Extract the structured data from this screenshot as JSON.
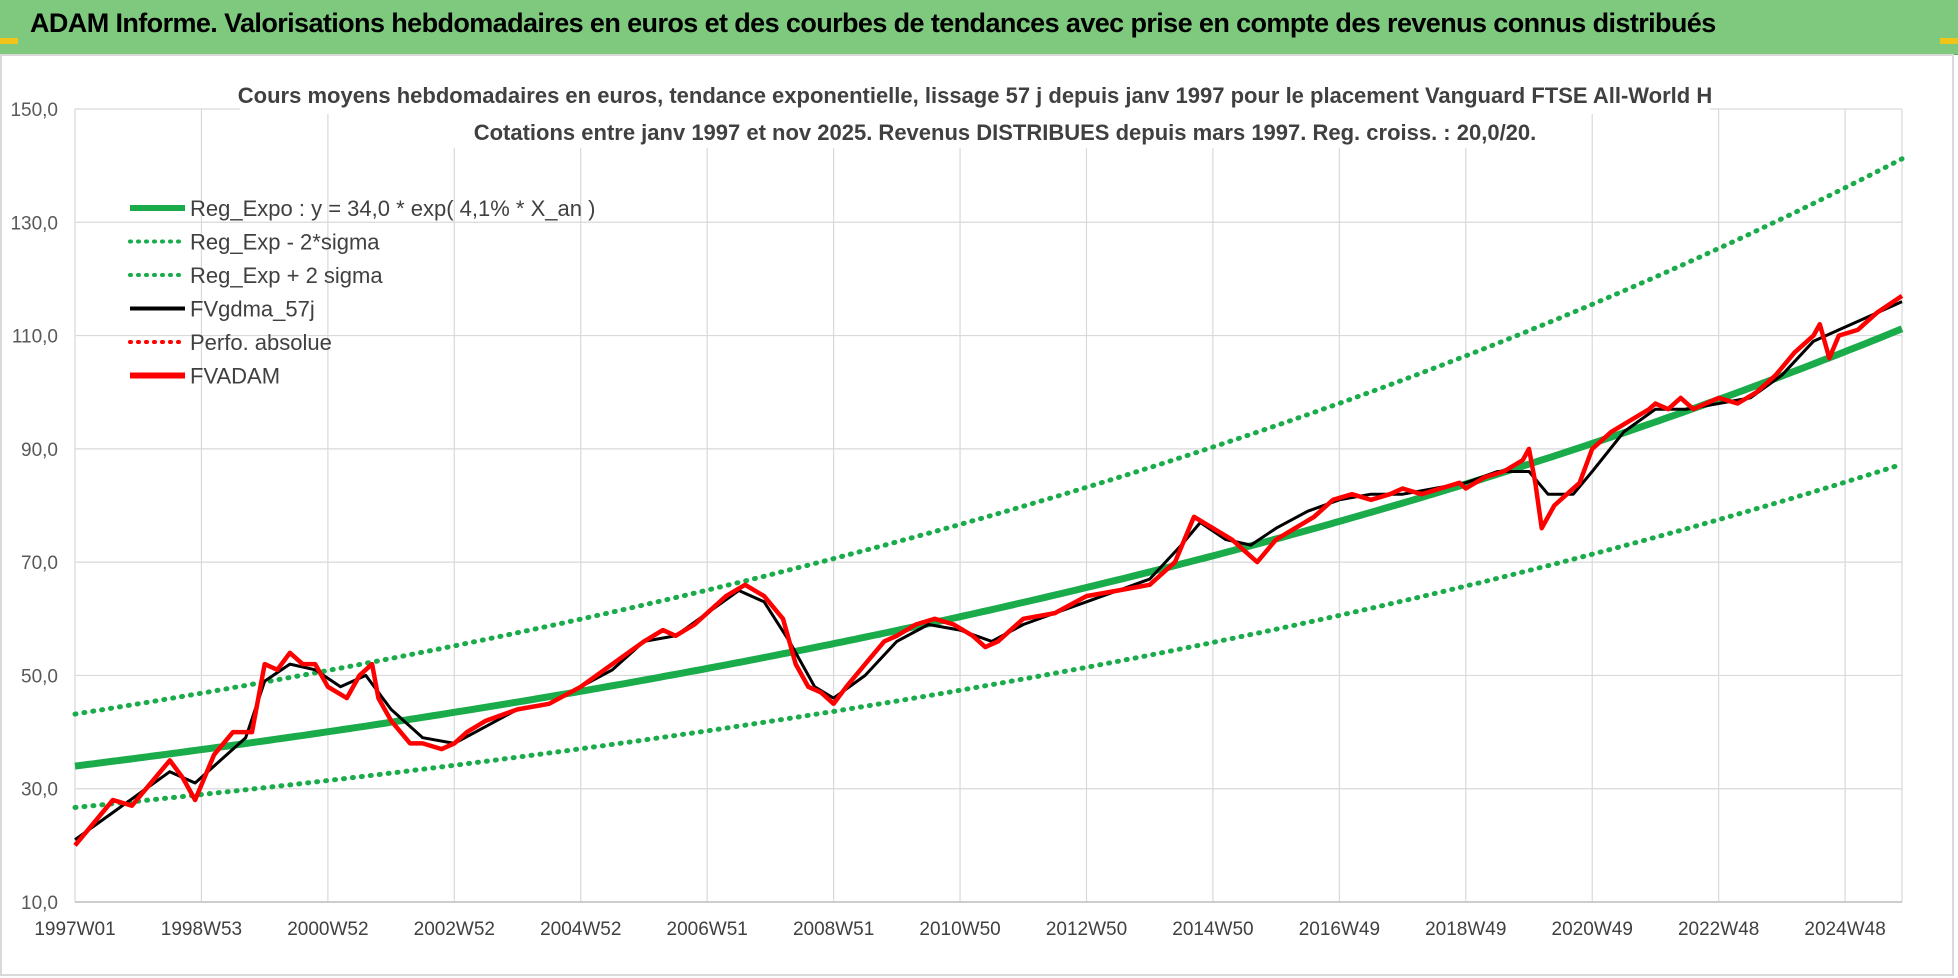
{
  "banner": {
    "title": "ADAM Informe. Valorisations hebdomadaires en euros et des courbes de tendances avec prise en compte des revenus connus distribués"
  },
  "colors": {
    "banner_bg": "#7fc97f",
    "trend_green": "#1aab4b",
    "fvgdma_black": "#000000",
    "fvadam_red": "#ff0000"
  },
  "chart_data": {
    "type": "line",
    "title": "Cours moyens hebdomadaires en euros, tendance exponentielle, lissage 57 j depuis janv 1997 pour le placement Vanguard FTSE All-World H",
    "subtitle": "Cotations entre janv 1997 et nov 2025. Revenus DISTRIBUES depuis mars 1997. Reg. croiss. : 20,0/20.",
    "ylim": [
      10,
      150
    ],
    "y_ticks": [
      "10,0",
      "30,0",
      "50,0",
      "70,0",
      "90,0",
      "110,0",
      "130,0",
      "150,0"
    ],
    "x_ticks": [
      "1997W01",
      "1998W53",
      "2000W52",
      "2002W52",
      "2004W52",
      "2006W51",
      "2008W51",
      "2010W50",
      "2012W50",
      "2014W50",
      "2016W49",
      "2018W49",
      "2020W49",
      "2022W48",
      "2024W48"
    ],
    "x_range_years": [
      1997.0,
      2025.9
    ],
    "grid": true,
    "legend_position": "top-left",
    "legend": [
      {
        "label": "Reg_Expo : y = 34,0 * exp( 4,1% *  X_an )",
        "style": "solid-thick",
        "color": "#1aab4b"
      },
      {
        "label": "Reg_Exp - 2*sigma",
        "style": "dotted",
        "color": "#1aab4b"
      },
      {
        "label": "Reg_Exp + 2 sigma",
        "style": "dotted",
        "color": "#1aab4b"
      },
      {
        "label": "FVgdma_57j",
        "style": "solid",
        "color": "#000000"
      },
      {
        "label": "Perfo. absolue",
        "style": "dotted",
        "color": "#ff0000"
      },
      {
        "label": "FVADAM",
        "style": "solid-thick",
        "color": "#ff0000"
      }
    ],
    "trend": {
      "a": 34.0,
      "rate": 0.041,
      "lower_factor": 0.785,
      "upper_factor": 1.27
    },
    "series": [
      {
        "name": "FVADAM",
        "x": [
          1997.0,
          1997.3,
          1997.6,
          1997.9,
          1998.2,
          1998.5,
          1998.7,
          1998.9,
          1999.2,
          1999.5,
          1999.8,
          2000.0,
          2000.2,
          2000.4,
          2000.6,
          2000.8,
          2001.0,
          2001.3,
          2001.5,
          2001.7,
          2001.8,
          2002.0,
          2002.3,
          2002.5,
          2002.8,
          2003.0,
          2003.2,
          2003.5,
          2004.0,
          2004.5,
          2005.0,
          2005.5,
          2006.0,
          2006.3,
          2006.5,
          2006.8,
          2007.0,
          2007.3,
          2007.6,
          2007.9,
          2008.2,
          2008.4,
          2008.6,
          2008.8,
          2009.0,
          2009.2,
          2009.5,
          2009.8,
          2010.0,
          2010.3,
          2010.6,
          2010.9,
          2011.2,
          2011.4,
          2011.6,
          2011.8,
          2012.0,
          2012.5,
          2013.0,
          2013.5,
          2014.0,
          2014.4,
          2014.7,
          2015.0,
          2015.3,
          2015.5,
          2015.7,
          2016.0,
          2016.3,
          2016.6,
          2016.9,
          2017.2,
          2017.5,
          2017.8,
          2018.0,
          2018.3,
          2018.6,
          2018.9,
          2019.0,
          2019.3,
          2019.6,
          2019.9,
          2020.0,
          2020.1,
          2020.2,
          2020.4,
          2020.6,
          2020.8,
          2021.0,
          2021.3,
          2021.6,
          2021.9,
          2022.0,
          2022.2,
          2022.4,
          2022.6,
          2022.8,
          2023.0,
          2023.3,
          2023.6,
          2023.9,
          2024.2,
          2024.5,
          2024.6,
          2024.75,
          2024.9,
          2025.2,
          2025.5,
          2025.9
        ],
        "values": [
          20,
          24,
          28,
          27,
          31,
          35,
          32,
          28,
          36,
          40,
          40,
          52,
          51,
          54,
          52,
          52,
          48,
          46,
          50,
          52,
          46,
          42,
          38,
          38,
          37,
          38,
          40,
          42,
          44,
          45,
          48,
          52,
          56,
          58,
          57,
          59,
          61,
          64,
          66,
          64,
          60,
          52,
          48,
          47,
          45,
          48,
          52,
          56,
          57,
          59,
          60,
          59,
          57,
          55,
          56,
          58,
          60,
          61,
          64,
          65,
          66,
          70,
          78,
          76,
          74,
          72,
          70,
          74,
          76,
          78,
          81,
          82,
          81,
          82,
          83,
          82,
          83,
          84,
          83,
          85,
          86,
          88,
          90,
          84,
          76,
          80,
          82,
          84,
          90,
          93,
          95,
          97,
          98,
          97,
          99,
          97,
          98,
          99,
          98,
          100,
          103,
          107,
          110,
          112,
          106,
          110,
          111,
          114,
          117
        ]
      },
      {
        "name": "FVgdma_57j",
        "x": [
          1997.0,
          1997.5,
          1998.0,
          1998.5,
          1998.9,
          1999.3,
          1999.7,
          2000.0,
          2000.4,
          2000.8,
          2001.2,
          2001.6,
          2002.0,
          2002.5,
          2003.0,
          2003.5,
          2004.0,
          2004.5,
          2005.0,
          2005.5,
          2006.0,
          2006.5,
          2007.0,
          2007.5,
          2007.9,
          2008.3,
          2008.7,
          2009.0,
          2009.5,
          2010.0,
          2010.5,
          2011.0,
          2011.5,
          2012.0,
          2012.5,
          2013.0,
          2013.5,
          2014.0,
          2014.5,
          2014.8,
          2015.2,
          2015.6,
          2016.0,
          2016.5,
          2017.0,
          2017.5,
          2018.0,
          2018.5,
          2019.0,
          2019.5,
          2020.0,
          2020.3,
          2020.7,
          2021.0,
          2021.5,
          2022.0,
          2022.5,
          2023.0,
          2023.5,
          2024.0,
          2024.5,
          2024.9,
          2025.3,
          2025.9
        ],
        "values": [
          21,
          25,
          29,
          33,
          31,
          35,
          39,
          49,
          52,
          51,
          48,
          50,
          44,
          39,
          38,
          41,
          44,
          45,
          48,
          51,
          56,
          57,
          61,
          65,
          63,
          56,
          48,
          46,
          50,
          56,
          59,
          58,
          56,
          59,
          61,
          63,
          65,
          67,
          73,
          77,
          74,
          73,
          76,
          79,
          81,
          82,
          82,
          83,
          84,
          86,
          86,
          82,
          82,
          86,
          93,
          97,
          97,
          98,
          99,
          103,
          109,
          111,
          113,
          116
        ]
      }
    ]
  }
}
